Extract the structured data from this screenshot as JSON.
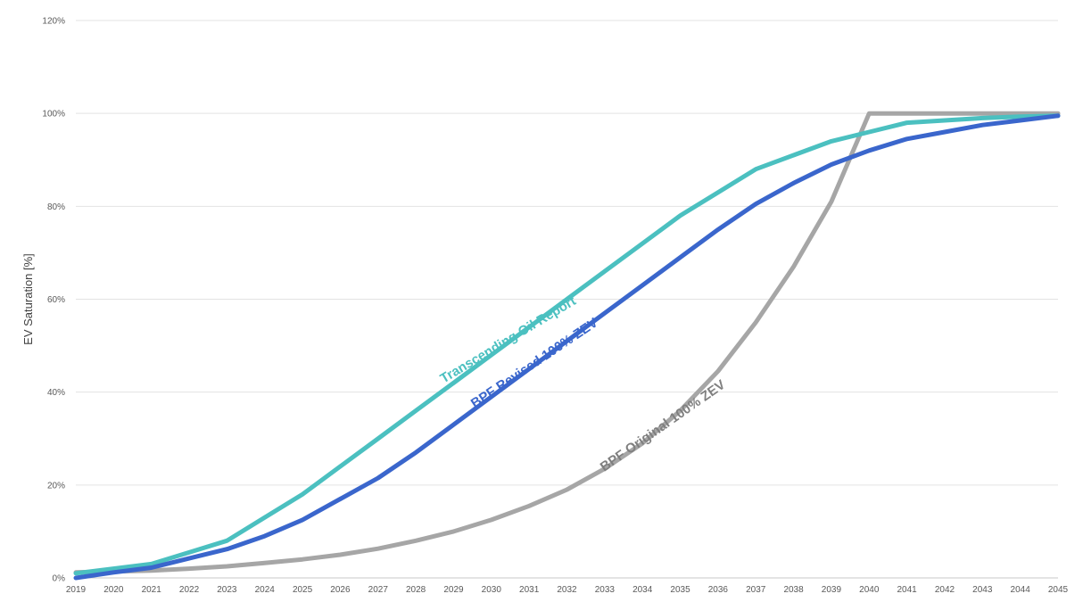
{
  "chart_data": {
    "type": "line",
    "title": "",
    "xlabel": "",
    "ylabel": "EV Saturation [%]",
    "ylim": [
      0,
      120
    ],
    "ytick_step": 20,
    "grid": true,
    "legend": "none (series labeled inline along lines)",
    "x": [
      2019,
      2020,
      2021,
      2022,
      2023,
      2024,
      2025,
      2026,
      2027,
      2028,
      2029,
      2030,
      2031,
      2032,
      2033,
      2034,
      2035,
      2036,
      2037,
      2038,
      2039,
      2040,
      2041,
      2042,
      2043,
      2044,
      2045
    ],
    "yticks": [
      "0%",
      "20%",
      "40%",
      "60%",
      "80%",
      "100%",
      "120%"
    ],
    "series": [
      {
        "name": "Transcending Oil Report",
        "color": "#4BC0C0",
        "values": [
          1.0,
          2.0,
          3.0,
          5.5,
          8.0,
          13.0,
          18.0,
          24.0,
          30.0,
          36.0,
          42.0,
          48.0,
          54.0,
          60.0,
          66.0,
          72.0,
          78.0,
          83.0,
          88.0,
          91.0,
          94.0,
          96.0,
          98.0,
          98.5,
          99.0,
          99.3,
          99.5
        ]
      },
      {
        "name": "BPF Revised 100% ZEV",
        "color": "#3A66CC",
        "values": [
          0.0,
          1.2,
          2.2,
          4.2,
          6.2,
          9.0,
          12.5,
          17.0,
          21.5,
          27.0,
          33.0,
          39.0,
          45.0,
          51.0,
          57.0,
          63.0,
          69.0,
          75.0,
          80.5,
          85.0,
          89.0,
          92.0,
          94.5,
          96.0,
          97.5,
          98.5,
          99.5
        ]
      },
      {
        "name": "BPF Original 100% ZEV",
        "color": "#A6A6A6",
        "values": [
          1.2,
          1.4,
          1.6,
          2.0,
          2.5,
          3.2,
          4.0,
          5.0,
          6.3,
          8.0,
          10.0,
          12.5,
          15.5,
          19.0,
          23.5,
          29.0,
          36.0,
          44.5,
          55.0,
          67.0,
          81.0,
          100.0,
          100.0,
          100.0,
          100.0,
          100.0,
          100.0
        ]
      }
    ],
    "inline_labels": [
      {
        "text": "Transcending Oil Report",
        "color": "#4BC0C0",
        "at_x": 2030.5,
        "at_y": 50.5,
        "angle": -31
      },
      {
        "text": "BPF Revised 100% ZEV",
        "color": "#3A66CC",
        "at_x": 2031.2,
        "at_y": 45.5,
        "angle": -34
      },
      {
        "text": "BPF Original 100% ZEV",
        "color": "#7F7F7F",
        "at_x": 2034.6,
        "at_y": 32.0,
        "angle": -35
      }
    ]
  }
}
